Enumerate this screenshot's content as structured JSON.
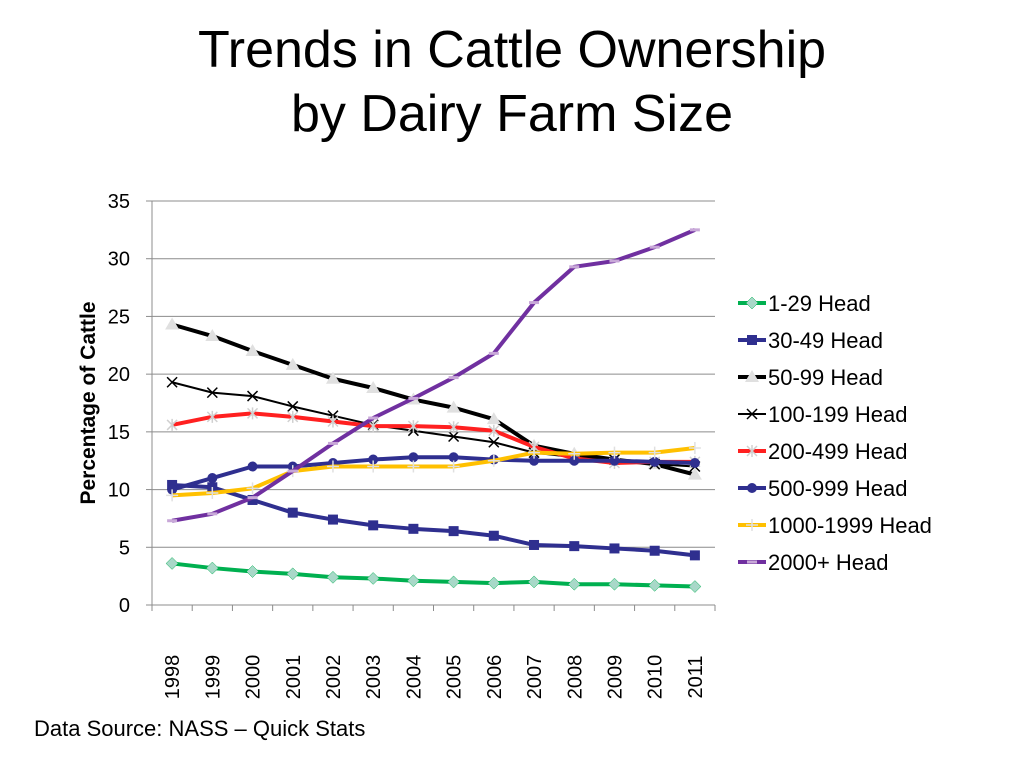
{
  "title_lines": [
    "Trends in Cattle Ownership",
    "by Dairy Farm Size"
  ],
  "source": "Data Source:  NASS – Quick Stats",
  "chart_data": {
    "type": "line",
    "ylabel": "Percentage of Cattle",
    "xlabel": "",
    "ylim": [
      0,
      35
    ],
    "yticks": [
      0,
      5,
      10,
      15,
      20,
      25,
      30,
      35
    ],
    "grid": "horizontal",
    "legend_position": "right",
    "categories": [
      "1998",
      "1999",
      "2000",
      "2001",
      "2002",
      "2003",
      "2004",
      "2005",
      "2006",
      "2007",
      "2008",
      "2009",
      "2010",
      "2011"
    ],
    "series": [
      {
        "name": "1-29 Head",
        "color": "#00b050",
        "marker": "diamond",
        "marker_color": "#a8d8c8",
        "values": [
          3.6,
          3.2,
          2.9,
          2.7,
          2.4,
          2.3,
          2.1,
          2.0,
          1.9,
          2.0,
          1.8,
          1.8,
          1.7,
          1.6
        ]
      },
      {
        "name": "30-49 Head",
        "color": "#2f2f8f",
        "marker": "square",
        "marker_color": "#2f2f8f",
        "values": [
          10.4,
          10.2,
          9.1,
          8.0,
          7.4,
          6.9,
          6.6,
          6.4,
          6.0,
          5.2,
          5.1,
          4.9,
          4.7,
          4.3
        ]
      },
      {
        "name": "50-99 Head",
        "color": "#000000",
        "marker": "triangle",
        "marker_color": "#e0e0e0",
        "values": [
          24.3,
          23.3,
          22.0,
          20.8,
          19.6,
          18.8,
          17.8,
          17.1,
          16.1,
          13.8,
          13.1,
          12.6,
          12.2,
          11.3
        ]
      },
      {
        "name": "100-199 Head",
        "color": "#000000",
        "marker": "x",
        "marker_color": "#000000",
        "values": [
          19.3,
          18.4,
          18.1,
          17.2,
          16.4,
          15.6,
          15.1,
          14.6,
          14.1,
          13.2,
          12.8,
          12.6,
          12.2,
          12.0
        ]
      },
      {
        "name": "200-499 Head",
        "color": "#ff2020",
        "marker": "star",
        "marker_color": "#d0d0d0",
        "values": [
          15.6,
          16.3,
          16.6,
          16.3,
          15.9,
          15.5,
          15.5,
          15.4,
          15.1,
          13.7,
          12.7,
          12.3,
          12.4,
          12.4
        ]
      },
      {
        "name": "500-999 Head",
        "color": "#2f2f8f",
        "marker": "circle",
        "marker_color": "#2f2f8f",
        "values": [
          10.0,
          11.0,
          12.0,
          12.0,
          12.3,
          12.6,
          12.8,
          12.8,
          12.6,
          12.5,
          12.5,
          12.5,
          12.4,
          12.3
        ]
      },
      {
        "name": "1000-1999 Head",
        "color": "#ffc000",
        "marker": "plus",
        "marker_color": "#e0e0e0",
        "values": [
          9.5,
          9.7,
          10.1,
          11.6,
          12.0,
          12.0,
          12.0,
          12.0,
          12.5,
          13.2,
          13.1,
          13.2,
          13.2,
          13.6
        ]
      },
      {
        "name": "2000+ Head",
        "color": "#7030a0",
        "marker": "dash",
        "marker_color": "#c8a8d8",
        "values": [
          7.3,
          7.9,
          9.3,
          11.6,
          14.0,
          16.2,
          17.9,
          19.7,
          21.8,
          26.2,
          29.3,
          29.8,
          31.0,
          32.5
        ]
      }
    ]
  }
}
